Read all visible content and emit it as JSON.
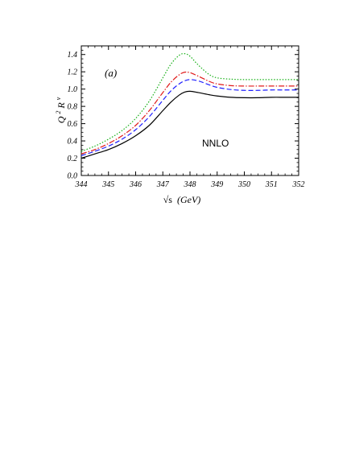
{
  "chart_data": {
    "type": "line",
    "title": "",
    "panel_label": "(a)",
    "annotation": "NNLO",
    "xlabel_prefix": "√s",
    "xlabel_unit": "(GeV)",
    "ylabel_base": "Q",
    "ylabel_sup1": "2",
    "ylabel_R": "R",
    "ylabel_sup2": "v",
    "xlim": [
      344,
      352
    ],
    "ylim": [
      0,
      1.5
    ],
    "x_ticks": [
      344,
      345,
      346,
      347,
      348,
      349,
      350,
      351,
      352
    ],
    "y_ticks": [
      0.0,
      0.2,
      0.4,
      0.6,
      0.8,
      1.0,
      1.2,
      1.4
    ],
    "y_tick_labels": [
      "0.0",
      "0.2",
      "0.4",
      "0.6",
      "0.8",
      "1.0",
      "1.2",
      "1.4"
    ],
    "grid": false,
    "series": [
      {
        "color": "#000000",
        "dash": "",
        "x": [
          344,
          344.5,
          345,
          345.5,
          346,
          346.5,
          347,
          347.3,
          347.6,
          347.8,
          348,
          348.3,
          348.7,
          349,
          349.5,
          350,
          350.5,
          351,
          351.5,
          352
        ],
        "y": [
          0.2,
          0.25,
          0.3,
          0.37,
          0.46,
          0.58,
          0.75,
          0.85,
          0.93,
          0.965,
          0.975,
          0.96,
          0.935,
          0.92,
          0.905,
          0.9,
          0.9,
          0.905,
          0.905,
          0.905
        ]
      },
      {
        "color": "#1f1fff",
        "dash": "6,3",
        "x": [
          344,
          344.5,
          345,
          345.5,
          346,
          346.5,
          347,
          347.3,
          347.6,
          347.8,
          348,
          348.3,
          348.7,
          349,
          349.5,
          350,
          350.5,
          351,
          351.5,
          352
        ],
        "y": [
          0.23,
          0.28,
          0.34,
          0.42,
          0.53,
          0.68,
          0.87,
          0.98,
          1.06,
          1.095,
          1.11,
          1.095,
          1.05,
          1.02,
          0.995,
          0.985,
          0.985,
          0.99,
          0.99,
          0.99
        ]
      },
      {
        "color": "#e01a1a",
        "dash": "7,2,1.5,2",
        "x": [
          344,
          344.5,
          345,
          345.5,
          346,
          346.5,
          347,
          347.3,
          347.6,
          347.8,
          348,
          348.3,
          348.7,
          349,
          349.5,
          350,
          350.5,
          351,
          351.5,
          352
        ],
        "y": [
          0.25,
          0.3,
          0.37,
          0.46,
          0.58,
          0.75,
          0.96,
          1.08,
          1.165,
          1.195,
          1.19,
          1.15,
          1.09,
          1.06,
          1.04,
          1.035,
          1.035,
          1.035,
          1.035,
          1.035
        ]
      },
      {
        "color": "#16b016",
        "dash": "1.5,2",
        "x": [
          344,
          344.5,
          345,
          345.5,
          346,
          346.5,
          347,
          347.3,
          347.6,
          347.8,
          348,
          348.3,
          348.7,
          349,
          349.5,
          350,
          350.5,
          351,
          351.5,
          352
        ],
        "y": [
          0.28,
          0.34,
          0.42,
          0.52,
          0.66,
          0.86,
          1.13,
          1.29,
          1.39,
          1.41,
          1.38,
          1.28,
          1.17,
          1.13,
          1.115,
          1.11,
          1.11,
          1.11,
          1.11,
          1.11
        ]
      }
    ]
  }
}
